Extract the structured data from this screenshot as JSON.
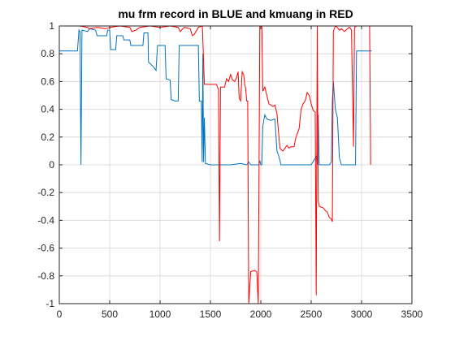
{
  "chart_data": {
    "type": "line",
    "title": "mu frm record in BLUE and kmuang in RED",
    "xlabel": "",
    "ylabel": "",
    "xlim": [
      0,
      3500
    ],
    "ylim": [
      -1,
      1
    ],
    "xticks": [
      0,
      500,
      1000,
      1500,
      2000,
      2500,
      3000,
      3500
    ],
    "yticks": [
      -1,
      -0.8,
      -0.6,
      -0.4,
      -0.2,
      0,
      0.2,
      0.4,
      0.6,
      0.8,
      1
    ],
    "xtick_labels": [
      "0",
      "500",
      "1000",
      "1500",
      "2000",
      "2500",
      "3000",
      "3500"
    ],
    "ytick_labels": [
      "-1",
      "-0.8",
      "-0.6",
      "-0.4",
      "-0.2",
      "0",
      "0.2",
      "0.4",
      "0.6",
      "0.8",
      "1"
    ],
    "grid": true,
    "series": [
      {
        "color": "#0072BD",
        "points": [
          [
            0,
            0.82
          ],
          [
            180,
            0.82
          ],
          [
            195,
            0.97
          ],
          [
            205,
            0.96
          ],
          [
            215,
            0.0
          ],
          [
            225,
            0.97
          ],
          [
            280,
            0.96
          ],
          [
            300,
            0.98
          ],
          [
            360,
            0.97
          ],
          [
            375,
            0.93
          ],
          [
            470,
            0.93
          ],
          [
            480,
            0.97
          ],
          [
            500,
            0.97
          ],
          [
            510,
            0.83
          ],
          [
            560,
            0.83
          ],
          [
            570,
            0.93
          ],
          [
            630,
            0.93
          ],
          [
            640,
            0.9
          ],
          [
            700,
            0.9
          ],
          [
            710,
            0.86
          ],
          [
            830,
            0.86
          ],
          [
            840,
            0.95
          ],
          [
            880,
            0.95
          ],
          [
            885,
            0.74
          ],
          [
            900,
            0.73
          ],
          [
            940,
            0.7
          ],
          [
            960,
            0.68
          ],
          [
            975,
            0.86
          ],
          [
            1050,
            0.86
          ],
          [
            1060,
            0.62
          ],
          [
            1100,
            0.61
          ],
          [
            1110,
            0.47
          ],
          [
            1150,
            0.46
          ],
          [
            1180,
            0.46
          ],
          [
            1190,
            0.86
          ],
          [
            1300,
            0.86
          ],
          [
            1380,
            0.86
          ],
          [
            1390,
            0.46
          ],
          [
            1410,
            0.46
          ],
          [
            1418,
            0.02
          ],
          [
            1425,
            0.8
          ],
          [
            1432,
            0.02
          ],
          [
            1440,
            0.34
          ],
          [
            1450,
            0.01
          ],
          [
            1500,
            0.0
          ],
          [
            1600,
            0.0
          ],
          [
            1700,
            0.0
          ],
          [
            1800,
            0.01
          ],
          [
            1860,
            0.0
          ],
          [
            1880,
            0.02
          ],
          [
            1900,
            0.0
          ],
          [
            1950,
            0.0
          ],
          [
            1980,
            0.0
          ],
          [
            1990,
            0.03
          ],
          [
            2000,
            0.0
          ],
          [
            2010,
            0.0
          ],
          [
            2020,
            0.28
          ],
          [
            2040,
            0.36
          ],
          [
            2060,
            0.33
          ],
          [
            2100,
            0.32
          ],
          [
            2140,
            0.33
          ],
          [
            2160,
            0.1
          ],
          [
            2180,
            0.06
          ],
          [
            2200,
            0.0
          ],
          [
            2250,
            0.0
          ],
          [
            2300,
            0.0
          ],
          [
            2400,
            0.0
          ],
          [
            2500,
            0.0
          ],
          [
            2550,
            0.06
          ],
          [
            2560,
            0.0
          ],
          [
            2570,
            0.36
          ],
          [
            2580,
            0.0
          ],
          [
            2620,
            0.0
          ],
          [
            2680,
            0.0
          ],
          [
            2700,
            0.02
          ],
          [
            2710,
            0.46
          ],
          [
            2720,
            0.6
          ],
          [
            2740,
            0.4
          ],
          [
            2760,
            0.34
          ],
          [
            2780,
            0.05
          ],
          [
            2800,
            0.0
          ],
          [
            2850,
            0.0
          ],
          [
            2900,
            0.0
          ],
          [
            2940,
            0.0
          ],
          [
            2950,
            0.82
          ],
          [
            3000,
            0.82
          ],
          [
            3100,
            0.82
          ]
        ]
      },
      {
        "color": "#FF0000",
        "points": [
          [
            0,
            1.0
          ],
          [
            100,
            1.0
          ],
          [
            200,
            1.0
          ],
          [
            280,
            0.99
          ],
          [
            300,
            0.98
          ],
          [
            380,
            0.99
          ],
          [
            460,
            0.98
          ],
          [
            500,
            0.99
          ],
          [
            600,
            1.0
          ],
          [
            700,
            0.99
          ],
          [
            720,
            0.96
          ],
          [
            760,
            0.97
          ],
          [
            800,
            0.99
          ],
          [
            900,
            1.0
          ],
          [
            1000,
            0.99
          ],
          [
            1100,
            1.0
          ],
          [
            1180,
            0.99
          ],
          [
            1200,
            0.96
          ],
          [
            1240,
            0.99
          ],
          [
            1300,
            0.98
          ],
          [
            1320,
            0.93
          ],
          [
            1340,
            0.94
          ],
          [
            1380,
            0.99
          ],
          [
            1420,
            1.0
          ],
          [
            1440,
            0.58
          ],
          [
            1460,
            0.58
          ],
          [
            1500,
            0.58
          ],
          [
            1560,
            0.58
          ],
          [
            1580,
            0.54
          ],
          [
            1590,
            -0.55
          ],
          [
            1600,
            0.56
          ],
          [
            1640,
            0.56
          ],
          [
            1660,
            0.62
          ],
          [
            1680,
            0.6
          ],
          [
            1700,
            0.65
          ],
          [
            1720,
            0.61
          ],
          [
            1740,
            0.6
          ],
          [
            1760,
            0.63
          ],
          [
            1775,
            0.67
          ],
          [
            1785,
            0.48
          ],
          [
            1800,
            0.46
          ],
          [
            1815,
            0.67
          ],
          [
            1830,
            0.65
          ],
          [
            1840,
            0.58
          ],
          [
            1850,
            0.55
          ],
          [
            1860,
            0.46
          ],
          [
            1870,
            0.46
          ],
          [
            1880,
            -1.0
          ],
          [
            1900,
            -0.77
          ],
          [
            1940,
            -0.76
          ],
          [
            1960,
            -0.77
          ],
          [
            1975,
            -1.0
          ],
          [
            1990,
            1.0
          ],
          [
            2010,
            1.0
          ],
          [
            2020,
            0.53
          ],
          [
            2040,
            0.56
          ],
          [
            2060,
            0.5
          ],
          [
            2080,
            0.44
          ],
          [
            2100,
            0.43
          ],
          [
            2120,
            0.42
          ],
          [
            2140,
            0.43
          ],
          [
            2160,
            0.37
          ],
          [
            2180,
            0.2
          ],
          [
            2190,
            0.12
          ],
          [
            2200,
            0.11
          ],
          [
            2220,
            0.1
          ],
          [
            2240,
            0.12
          ],
          [
            2260,
            0.14
          ],
          [
            2280,
            0.12
          ],
          [
            2300,
            0.13
          ],
          [
            2330,
            0.13
          ],
          [
            2340,
            0.17
          ],
          [
            2350,
            0.2
          ],
          [
            2380,
            0.26
          ],
          [
            2400,
            0.4
          ],
          [
            2420,
            0.44
          ],
          [
            2440,
            0.46
          ],
          [
            2460,
            0.52
          ],
          [
            2480,
            0.5
          ],
          [
            2500,
            0.44
          ],
          [
            2520,
            0.39
          ],
          [
            2540,
            0.38
          ],
          [
            2550,
            -0.94
          ],
          [
            2560,
            1.0
          ],
          [
            2570,
            -0.26
          ],
          [
            2580,
            -0.3
          ],
          [
            2620,
            -0.31
          ],
          [
            2640,
            -0.33
          ],
          [
            2660,
            -0.34
          ],
          [
            2680,
            -0.38
          ],
          [
            2700,
            -0.39
          ],
          [
            2710,
            -0.41
          ],
          [
            2720,
            0.96
          ],
          [
            2740,
            1.0
          ],
          [
            2760,
            0.99
          ],
          [
            2780,
            0.97
          ],
          [
            2800,
            0.98
          ],
          [
            2830,
            0.96
          ],
          [
            2860,
            0.98
          ],
          [
            2880,
            0.99
          ],
          [
            2900,
            0.97
          ],
          [
            2920,
            0.13
          ],
          [
            2930,
            0.99
          ],
          [
            2950,
            1.0
          ],
          [
            3000,
            1.0
          ],
          [
            3050,
            1.0
          ],
          [
            3080,
            1.0
          ],
          [
            3090,
            0.0
          ]
        ]
      }
    ]
  }
}
